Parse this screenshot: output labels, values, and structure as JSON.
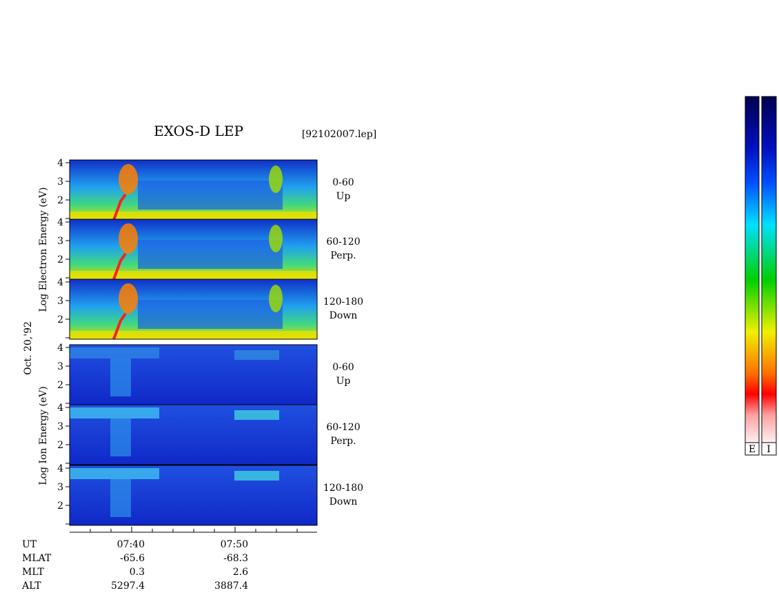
{
  "title": "EXOS-D LEP",
  "file": "[92102007.lep]",
  "date": "Oct. 20,'92",
  "electron_label": "Log Electron Energy (eV)",
  "ion_label": "Log Ion Energy (eV)",
  "energy_ticks": [
    2,
    3,
    4
  ],
  "channels": [
    {
      "range": "0-60",
      "direction": "Up"
    },
    {
      "range": "60-120",
      "direction": "Perp."
    },
    {
      "range": "120-180",
      "direction": "Down"
    }
  ],
  "orbit": [
    {
      "label": "UT",
      "values": [
        "07:40",
        "07:50"
      ]
    },
    {
      "label": "MLAT",
      "values": [
        "-65.6",
        "-68.3"
      ]
    },
    {
      "label": "MLT",
      "values": [
        "0.3",
        "2.6"
      ]
    },
    {
      "label": "ALT",
      "values": [
        "5297.4",
        "3887.4"
      ]
    }
  ],
  "colorbar_labels": [
    "E",
    "I"
  ]
}
